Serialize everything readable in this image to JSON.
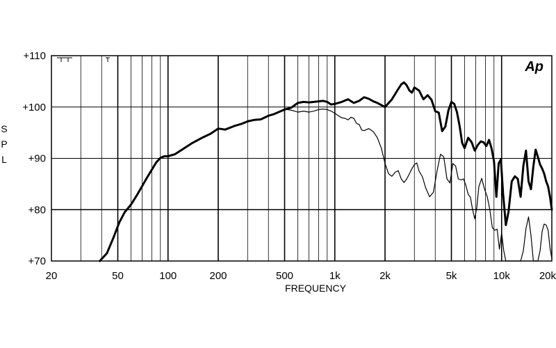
{
  "chart_data": {
    "type": "line",
    "title": "",
    "xlabel": "FREQUENCY",
    "ylabel": "SPL",
    "x_scale": "log",
    "xlim": [
      20,
      20000
    ],
    "ylim": [
      70,
      110
    ],
    "grid": true,
    "x_ticks": [
      {
        "value": 20,
        "label": "20"
      },
      {
        "value": 50,
        "label": "50"
      },
      {
        "value": 100,
        "label": "100"
      },
      {
        "value": 200,
        "label": "200"
      },
      {
        "value": 500,
        "label": "500"
      },
      {
        "value": 1000,
        "label": "1k"
      },
      {
        "value": 2000,
        "label": "2k"
      },
      {
        "value": 5000,
        "label": "5k"
      },
      {
        "value": 10000,
        "label": "10k"
      },
      {
        "value": 20000,
        "label": "20k"
      }
    ],
    "y_ticks": [
      {
        "value": 70,
        "label": "+70"
      },
      {
        "value": 80,
        "label": "+80"
      },
      {
        "value": 90,
        "label": "+90"
      },
      {
        "value": 100,
        "label": "+100"
      },
      {
        "value": 110,
        "label": "+110"
      }
    ],
    "logo_text": "Ap",
    "series": [
      {
        "style": "thick",
        "color": "#000000",
        "x": [
          39,
          43,
          47,
          51,
          55,
          60,
          65,
          70,
          75,
          80,
          85,
          90,
          95,
          100,
          110,
          120,
          140,
          160,
          180,
          200,
          220,
          250,
          280,
          300,
          330,
          360,
          400,
          430,
          460,
          500,
          550,
          600,
          650,
          700,
          750,
          800,
          850,
          900,
          950,
          1000,
          1100,
          1200,
          1300,
          1400,
          1500,
          1600,
          1700,
          1800,
          2000,
          2200,
          2400,
          2500,
          2600,
          2700,
          2800,
          2900,
          3000,
          3200,
          3400,
          3600,
          3800,
          4000,
          4200,
          4400,
          4600,
          4800,
          5000,
          5200,
          5400,
          5600,
          5800,
          6000,
          6300,
          6600,
          6900,
          7200,
          7500,
          7800,
          8100,
          8400,
          8700,
          9000,
          9300,
          9600,
          9900,
          10200,
          10600,
          11000,
          11500,
          12000,
          12500,
          13000,
          13500,
          14000,
          14500,
          15000,
          15500,
          16000,
          16500,
          17000,
          17500,
          18000,
          18500,
          19000,
          19500,
          20000
        ],
        "y": [
          70.0,
          71.5,
          74.5,
          77.5,
          79.5,
          81.0,
          82.8,
          84.6,
          86.3,
          87.8,
          89.2,
          90.1,
          90.4,
          90.4,
          90.8,
          91.6,
          93.0,
          94.0,
          94.8,
          95.8,
          95.6,
          96.3,
          96.8,
          97.2,
          97.5,
          97.6,
          98.3,
          98.6,
          99.0,
          99.5,
          99.9,
          100.8,
          101.0,
          100.9,
          101.0,
          101.1,
          101.2,
          101.0,
          100.5,
          100.6,
          101.0,
          101.5,
          100.8,
          101.2,
          101.9,
          101.6,
          101.1,
          100.8,
          100.0,
          101.5,
          103.5,
          104.4,
          104.8,
          104.2,
          103.2,
          102.8,
          103.8,
          103.2,
          101.5,
          102.3,
          101.4,
          99.2,
          98.9,
          95.3,
          96.2,
          99.4,
          101.0,
          100.6,
          99.0,
          96.3,
          93.0,
          92.0,
          94.0,
          93.2,
          91.5,
          92.6,
          93.3,
          93.1,
          92.4,
          93.6,
          92.0,
          89.4,
          82.5,
          89.0,
          89.8,
          83.2,
          77.0,
          79.6,
          85.5,
          86.5,
          86.0,
          82.5,
          88.5,
          91.5,
          85.5,
          84.0,
          88.4,
          91.7,
          90.3,
          88.8,
          88.0,
          87.0,
          85.5,
          84.5,
          82.5,
          80.0
        ]
      },
      {
        "style": "thin",
        "color": "#000000",
        "x": [
          520,
          560,
          600,
          650,
          700,
          750,
          800,
          850,
          900,
          950,
          1000,
          1050,
          1100,
          1150,
          1200,
          1250,
          1300,
          1350,
          1400,
          1450,
          1500,
          1600,
          1700,
          1800,
          1900,
          2000,
          2100,
          2200,
          2300,
          2400,
          2500,
          2600,
          2700,
          2800,
          2900,
          3000,
          3100,
          3200,
          3350,
          3500,
          3700,
          3900,
          4100,
          4300,
          4500,
          4700,
          4900,
          5100,
          5300,
          5500,
          5700,
          5900,
          6100,
          6300,
          6500,
          6700,
          6900,
          7100,
          7300,
          7600,
          7900,
          8200,
          8500,
          8800,
          9100,
          9400,
          9700,
          10000,
          10300,
          10600,
          11000,
          11500,
          12000,
          12500,
          13000,
          13500,
          14000,
          14500,
          15000,
          15500,
          16000,
          16500,
          17000,
          17500,
          18000,
          18500,
          19000,
          19500,
          20000
        ],
        "y": [
          99.5,
          99.3,
          99.0,
          99.2,
          99.0,
          99.2,
          99.5,
          99.6,
          99.5,
          99.2,
          98.8,
          98.3,
          97.9,
          97.8,
          97.5,
          98.0,
          97.8,
          96.8,
          96.6,
          95.5,
          95.4,
          95.8,
          95.2,
          94.0,
          92.0,
          89.0,
          87.0,
          86.5,
          87.3,
          87.6,
          86.0,
          85.3,
          86.0,
          87.0,
          88.0,
          88.8,
          89.1,
          87.5,
          86.4,
          84.3,
          82.5,
          83.4,
          87.5,
          90.8,
          90.3,
          86.0,
          85.2,
          89.0,
          88.5,
          86.0,
          85.8,
          86.0,
          84.8,
          83.0,
          82.4,
          80.0,
          78.2,
          80.5,
          84.5,
          86.1,
          84.0,
          82.5,
          80.0,
          76.5,
          76.0,
          76.2,
          72.3,
          75.5,
          72.0,
          68.8,
          66.4,
          66.5,
          66.0,
          67.0,
          68.5,
          72.0,
          76.3,
          78.6,
          75.0,
          69.8,
          66.8,
          68.6,
          72.0,
          75.8,
          77.2,
          77.0,
          76.0,
          72.5,
          70.5
        ]
      }
    ]
  }
}
